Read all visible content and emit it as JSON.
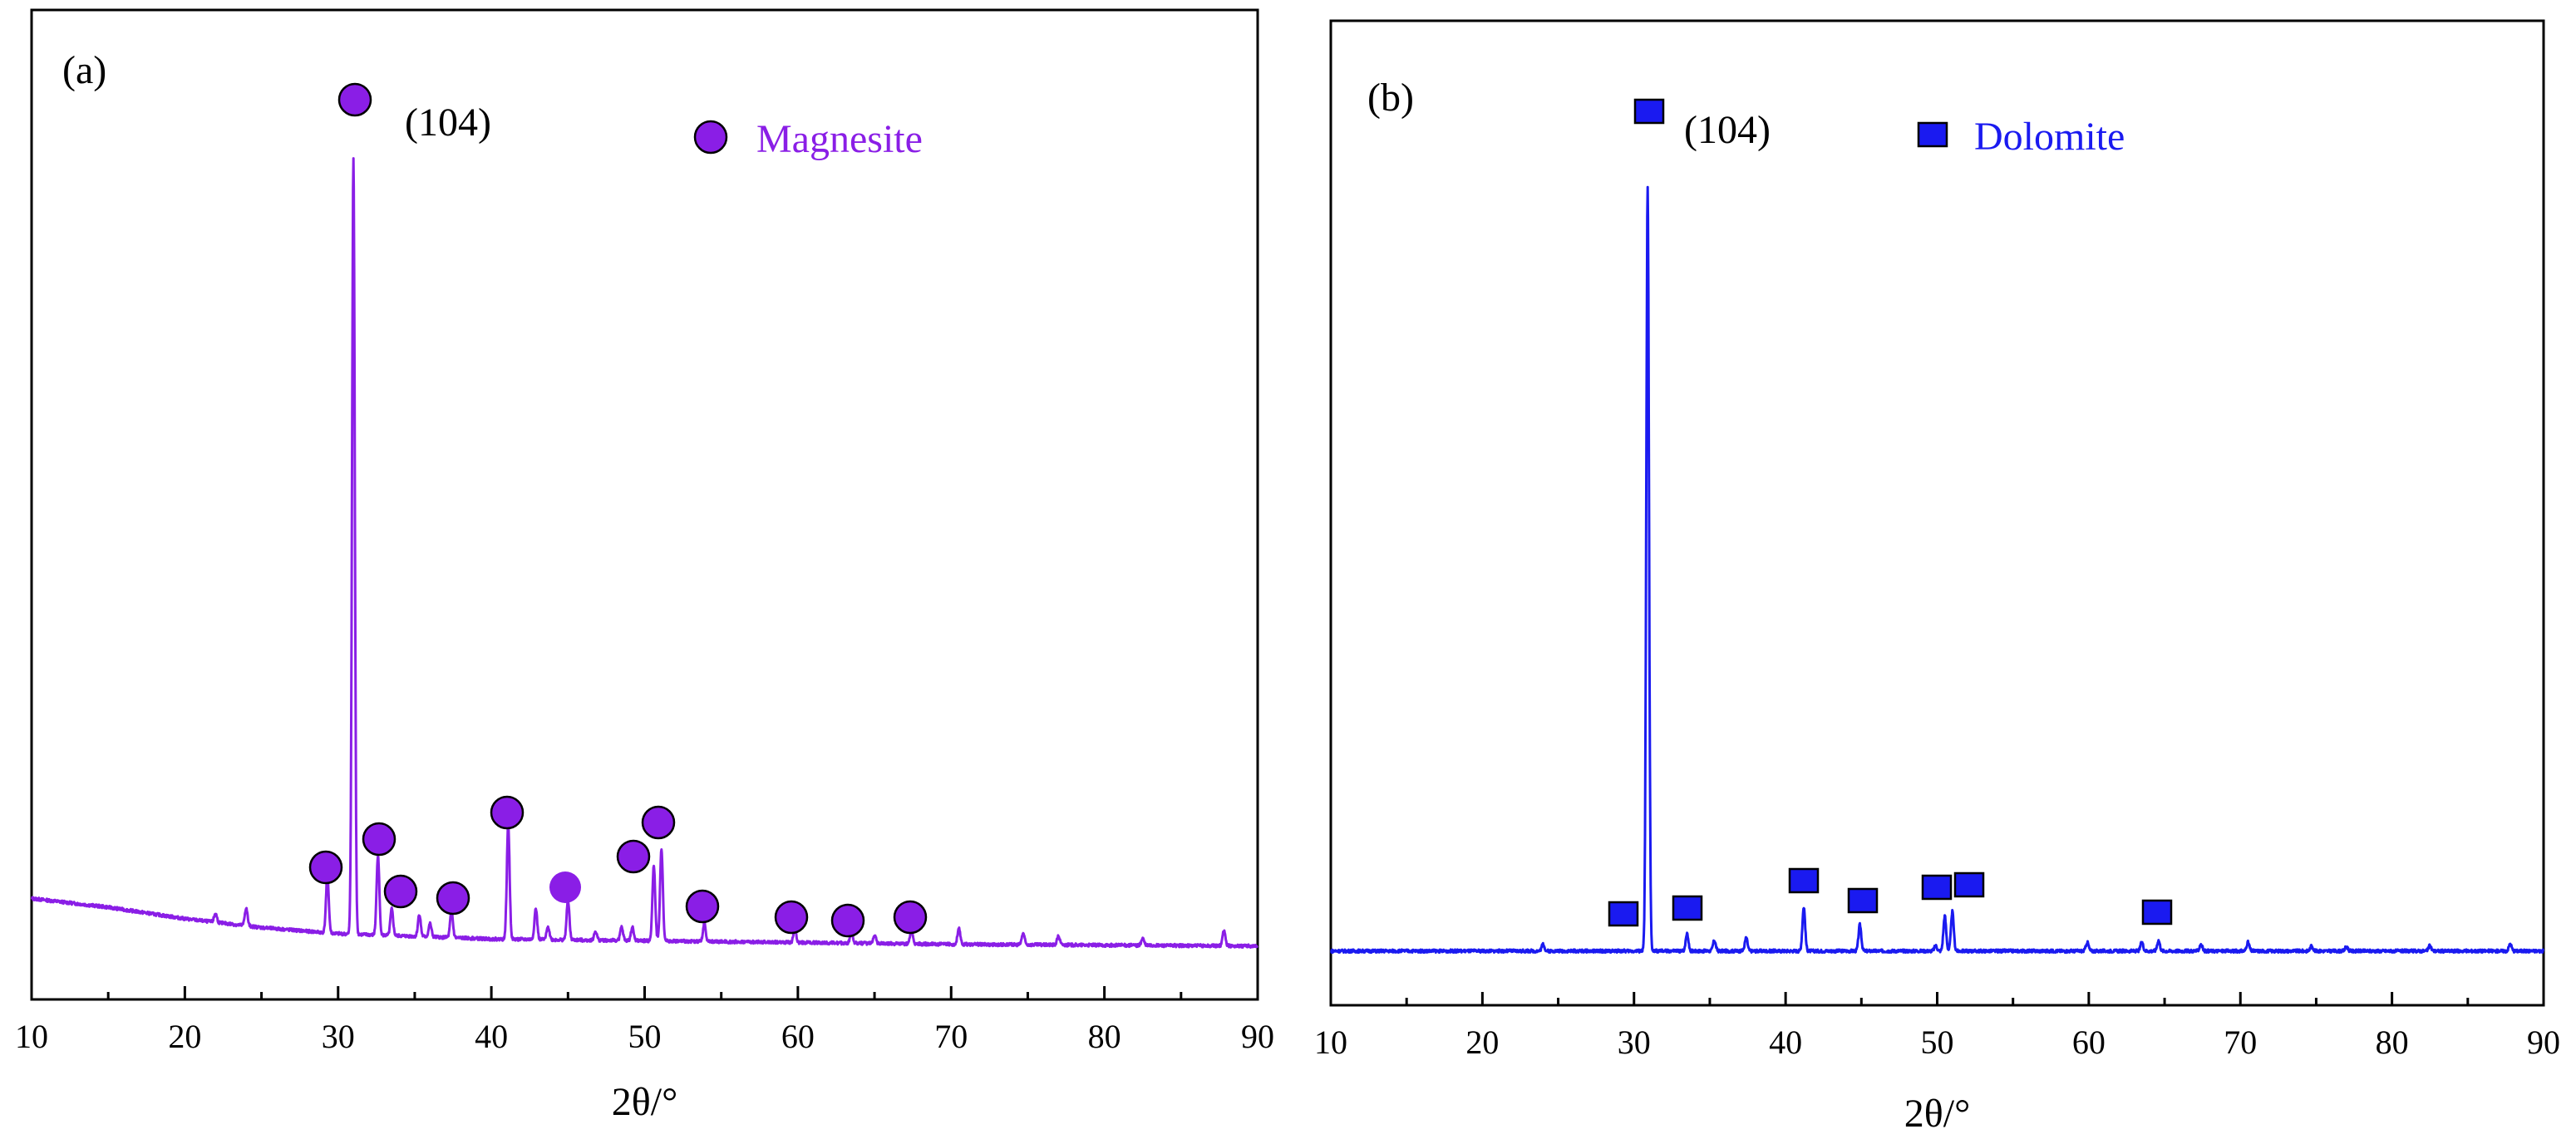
{
  "chart_data": [
    {
      "type": "line",
      "panel_label": "(a)",
      "phase": "Magnesite",
      "color": "#8a1ee6",
      "marker": "circle",
      "xlabel": "2θ/°",
      "ylabel": "",
      "xlim": [
        10,
        90
      ],
      "ylim": [
        0,
        100
      ],
      "xticks": [
        10,
        20,
        30,
        40,
        50,
        60,
        70,
        80,
        90
      ],
      "peak_annotation": {
        "label": "(104)",
        "x": 31.0
      },
      "background": [
        [
          10,
          5.8
        ],
        [
          15,
          4.8
        ],
        [
          20,
          3.5
        ],
        [
          25,
          2.5
        ],
        [
          30,
          1.8
        ],
        [
          40,
          1.2
        ],
        [
          50,
          1.0
        ],
        [
          60,
          0.8
        ],
        [
          70,
          0.6
        ],
        [
          80,
          0.5
        ],
        [
          90,
          0.4
        ]
      ],
      "peaks": [
        {
          "x": 22.0,
          "h": 1.0
        },
        {
          "x": 24.0,
          "h": 2.0
        },
        {
          "x": 29.3,
          "h": 6.5
        },
        {
          "x": 31.0,
          "h": 88.0
        },
        {
          "x": 32.6,
          "h": 9.0
        },
        {
          "x": 33.5,
          "h": 3.0
        },
        {
          "x": 35.3,
          "h": 2.5
        },
        {
          "x": 36.0,
          "h": 1.5
        },
        {
          "x": 37.4,
          "h": 3.0
        },
        {
          "x": 41.1,
          "h": 13.0
        },
        {
          "x": 42.9,
          "h": 3.5
        },
        {
          "x": 43.7,
          "h": 1.5
        },
        {
          "x": 45.0,
          "h": 4.5
        },
        {
          "x": 46.8,
          "h": 1.0
        },
        {
          "x": 48.5,
          "h": 1.5
        },
        {
          "x": 49.2,
          "h": 1.5
        },
        {
          "x": 50.6,
          "h": 8.5
        },
        {
          "x": 51.1,
          "h": 10.5
        },
        {
          "x": 53.9,
          "h": 2.0
        },
        {
          "x": 59.8,
          "h": 1.5
        },
        {
          "x": 63.5,
          "h": 1.2
        },
        {
          "x": 65.0,
          "h": 1.0
        },
        {
          "x": 67.4,
          "h": 1.5
        },
        {
          "x": 70.5,
          "h": 1.8
        },
        {
          "x": 74.7,
          "h": 1.3
        },
        {
          "x": 77.0,
          "h": 1.0
        },
        {
          "x": 82.5,
          "h": 0.8
        },
        {
          "x": 87.8,
          "h": 1.8
        }
      ],
      "markers": [
        {
          "x": 29.3,
          "y": 8.5
        },
        {
          "x": 31.0,
          "y": 91.0
        },
        {
          "x": 32.6,
          "y": 11.0
        },
        {
          "x": 34.0,
          "y": 6.0
        },
        {
          "x": 37.5,
          "y": 5.0
        },
        {
          "x": 41.0,
          "y": 14.0
        },
        {
          "x": 45.0,
          "y": 6.5
        },
        {
          "x": 49.3,
          "y": 9.5
        },
        {
          "x": 50.8,
          "y": 13.0
        },
        {
          "x": 53.9,
          "y": 4.0
        },
        {
          "x": 59.6,
          "y": 3.5
        },
        {
          "x": 63.3,
          "y": 3.0
        },
        {
          "x": 67.3,
          "y": 3.5
        }
      ]
    },
    {
      "type": "line",
      "panel_label": "(b)",
      "phase": "Dolomite",
      "color": "#1a1af0",
      "marker": "square",
      "xlabel": "2θ/°",
      "ylabel": "",
      "xlim": [
        10,
        90
      ],
      "ylim": [
        0,
        100
      ],
      "xticks": [
        10,
        20,
        30,
        40,
        50,
        60,
        70,
        80,
        90
      ],
      "peak_annotation": {
        "label": "(104)",
        "x": 31.0
      },
      "background": [
        [
          10,
          0.5
        ],
        [
          50,
          0.5
        ],
        [
          90,
          0.5
        ]
      ],
      "peaks": [
        {
          "x": 24.0,
          "h": 0.8
        },
        {
          "x": 30.9,
          "h": 87.0
        },
        {
          "x": 33.5,
          "h": 2.0
        },
        {
          "x": 35.3,
          "h": 1.2
        },
        {
          "x": 37.4,
          "h": 1.5
        },
        {
          "x": 41.2,
          "h": 5.0
        },
        {
          "x": 44.9,
          "h": 3.0
        },
        {
          "x": 49.9,
          "h": 0.6
        },
        {
          "x": 50.5,
          "h": 4.0
        },
        {
          "x": 51.0,
          "h": 4.5
        },
        {
          "x": 59.9,
          "h": 1.0
        },
        {
          "x": 63.5,
          "h": 1.0
        },
        {
          "x": 64.6,
          "h": 1.2
        },
        {
          "x": 67.4,
          "h": 0.8
        },
        {
          "x": 70.5,
          "h": 1.0
        },
        {
          "x": 74.7,
          "h": 0.6
        },
        {
          "x": 77.0,
          "h": 0.5
        },
        {
          "x": 82.5,
          "h": 0.6
        },
        {
          "x": 87.8,
          "h": 0.8
        }
      ],
      "markers": [
        {
          "x": 29.3,
          "y": 3.0
        },
        {
          "x": 31.0,
          "y": 90.0
        },
        {
          "x": 33.6,
          "y": 3.5
        },
        {
          "x": 41.2,
          "y": 6.5
        },
        {
          "x": 45.0,
          "y": 4.3
        },
        {
          "x": 50.0,
          "y": 5.8
        },
        {
          "x": 52.2,
          "y": 6.0
        },
        {
          "x": 64.5,
          "y": 3.2
        }
      ]
    }
  ]
}
